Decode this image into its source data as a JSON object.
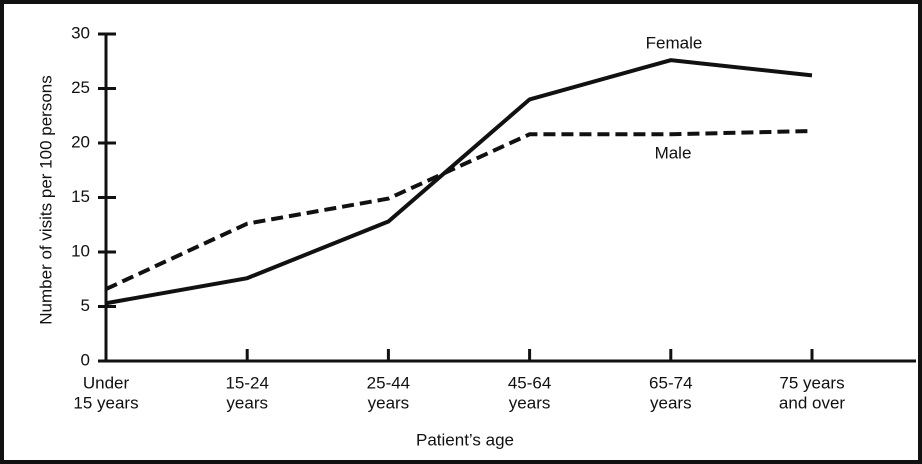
{
  "chart_data": {
    "type": "line",
    "x_label": "Patient’s age",
    "y_label": "Number of visits per 100 persons",
    "categories": [
      [
        "Under",
        "15 years"
      ],
      [
        "15-24",
        "years"
      ],
      [
        "25-44",
        "years"
      ],
      [
        "45-64",
        "years"
      ],
      [
        "65-74",
        "years"
      ],
      [
        "75 years",
        "and over"
      ]
    ],
    "series": [
      {
        "name": "Female",
        "color": "#111111",
        "dash": "solid",
        "values": [
          5.3,
          7.6,
          12.8,
          24.0,
          27.6,
          26.2
        ]
      },
      {
        "name": "Male",
        "color": "#111111",
        "dash": "dashed",
        "values": [
          6.6,
          12.6,
          14.9,
          20.8,
          20.8,
          21.1
        ]
      }
    ],
    "ylim": [
      0,
      30
    ],
    "yticks": [
      0,
      5,
      10,
      15,
      20,
      25,
      30
    ],
    "grid": false
  }
}
